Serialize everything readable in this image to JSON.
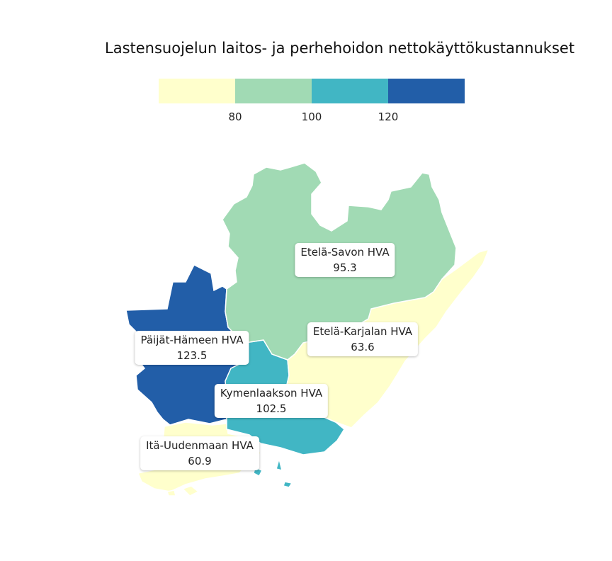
{
  "title": "Lastensuojelun laitos- ja perhehoidon nettokäyttökustannukset",
  "legend": {
    "colors": [
      "#ffffcc",
      "#a1dab4",
      "#41b6c4",
      "#225ea8"
    ],
    "ticks": [
      "80",
      "100",
      "120"
    ]
  },
  "regions": [
    {
      "id": "etela-savo",
      "name": "Etelä-Savon HVA",
      "value": "95.3",
      "color": "#a1dab4"
    },
    {
      "id": "etela-karjala",
      "name": "Etelä-Karjalan HVA",
      "value": "63.6",
      "color": "#ffffcc"
    },
    {
      "id": "paijat-hame",
      "name": "Päijät-Hämeen HVA",
      "value": "123.5",
      "color": "#225ea8"
    },
    {
      "id": "kymenlaakso",
      "name": "Kymenlaakson HVA",
      "value": "102.5",
      "color": "#41b6c4"
    },
    {
      "id": "ita-uusimaa",
      "name": "Itä-Uudenmaan HVA",
      "value": "60.9",
      "color": "#ffffcc"
    }
  ]
}
